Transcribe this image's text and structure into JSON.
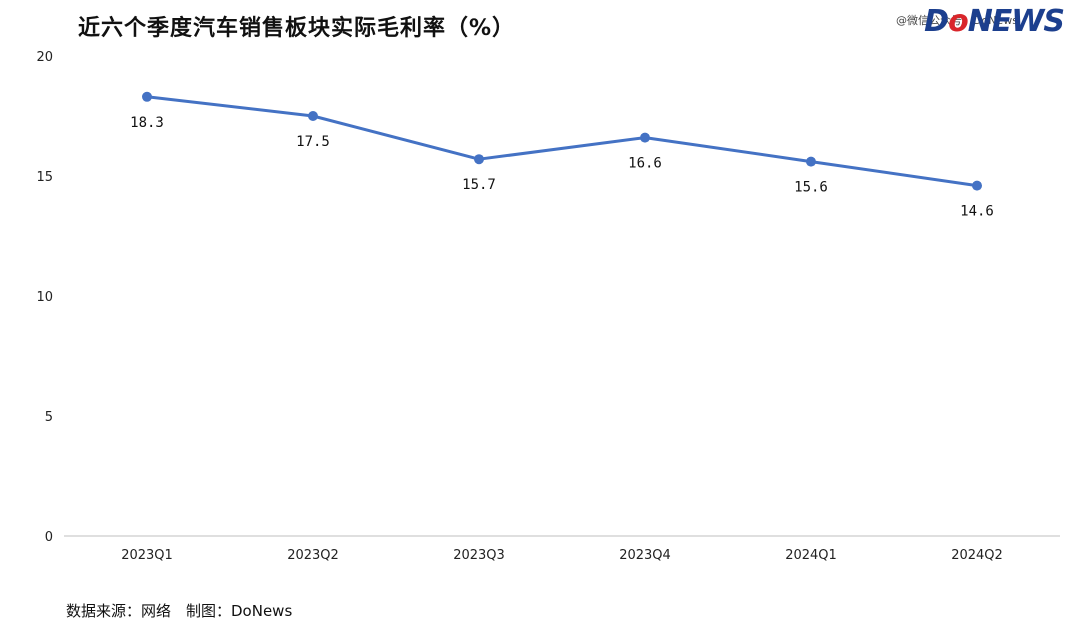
{
  "header": {
    "title": "近六个季度汽车销售板块实际毛利率（%）",
    "watermark": "@微信公众号：DoNews",
    "logo": {
      "part1": "D",
      "part2": "o",
      "part3": "NEWS"
    }
  },
  "footer": {
    "source": "数据来源：网络　制图：DoNews"
  },
  "colors": {
    "line": "#4472c4",
    "axis": "#bfbfbf"
  },
  "chart_data": {
    "type": "line",
    "title": "近六个季度汽车销售板块实际毛利率（%）",
    "categories": [
      "2023Q1",
      "2023Q2",
      "2023Q3",
      "2023Q4",
      "2024Q1",
      "2024Q2"
    ],
    "series": [
      {
        "values": [
          18.3,
          17.5,
          15.7,
          16.6,
          15.6,
          14.6
        ]
      }
    ],
    "data_labels": [
      "18.3",
      "17.5",
      "15.7",
      "16.6",
      "15.6",
      "14.6"
    ],
    "ylim": [
      0,
      20
    ],
    "yticks": [
      0,
      5,
      10,
      15,
      20
    ],
    "xlabel": "",
    "ylabel": "",
    "grid": false,
    "legend": "none"
  }
}
